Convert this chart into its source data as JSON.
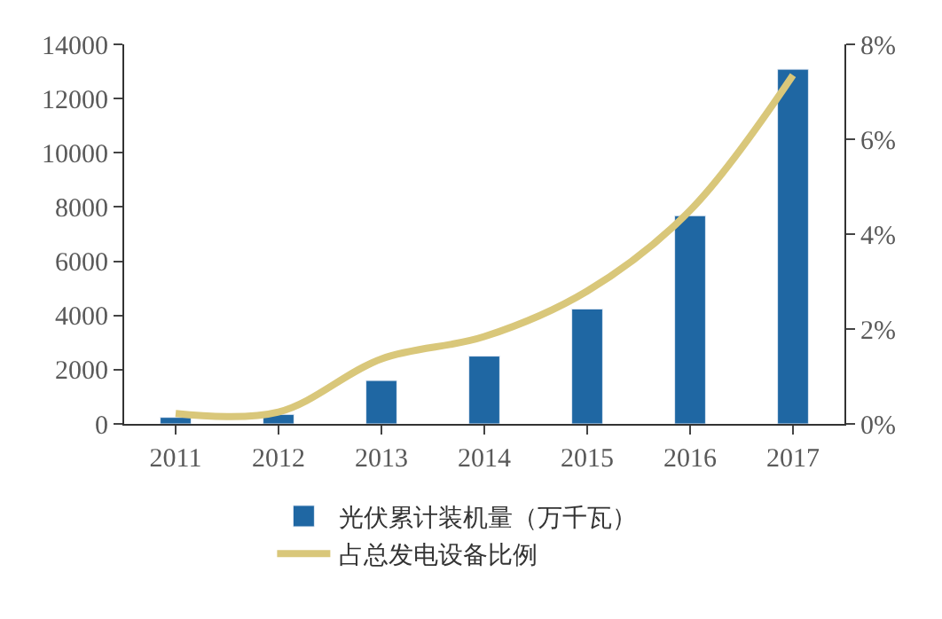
{
  "chart_data": {
    "type": "bar",
    "categories": [
      "2011",
      "2012",
      "2013",
      "2014",
      "2015",
      "2016",
      "2017"
    ],
    "series": [
      {
        "name": "光伏累计装机量（万千瓦）",
        "color": "#1f67a3",
        "values": [
          240,
          350,
          1600,
          2500,
          4240,
          7680,
          13080
        ]
      },
      {
        "name": "占总发电设备比例",
        "type": "line",
        "axis": "y2",
        "color": "#d9c77a",
        "values": [
          0.22,
          0.25,
          1.37,
          1.84,
          2.8,
          4.5,
          7.35
        ]
      }
    ],
    "ylim": [
      0,
      14000
    ],
    "yticks": [
      0,
      2000,
      4000,
      6000,
      8000,
      10000,
      12000,
      14000
    ],
    "y2lim": [
      0,
      8
    ],
    "y2ticks": [
      {
        "value": 0,
        "label": "0%"
      },
      {
        "value": 2,
        "label": "2%"
      },
      {
        "value": 4,
        "label": "4%"
      },
      {
        "value": 6,
        "label": "6%"
      },
      {
        "value": 8,
        "label": "8%"
      }
    ],
    "legend": "bottom",
    "marker": "none",
    "line_style": "solid"
  }
}
